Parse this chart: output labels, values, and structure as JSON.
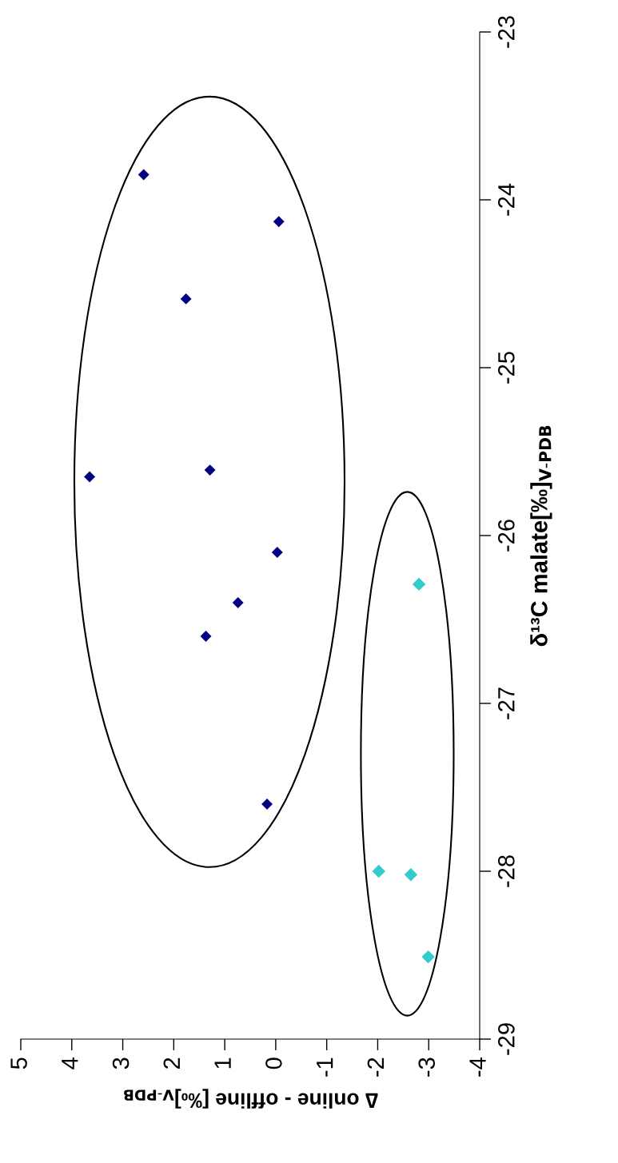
{
  "chart_data": {
    "type": "scatter",
    "ylabel": "δ¹³C malate[‰]$_{ V-PDB}$",
    "xlabel": "∆ online - offline [‰]$_{V-PDB}$",
    "ylim": [
      -29,
      -23
    ],
    "yticks": [
      -29,
      -28,
      -27,
      -26,
      -25,
      -24,
      -23
    ],
    "xlim": [
      5,
      -4
    ],
    "xticks": [
      -4,
      -3,
      -2,
      -1,
      0,
      1,
      2,
      3,
      4,
      5
    ],
    "marker": "diamond",
    "grid": false,
    "legend": false,
    "series": [
      {
        "color": "#000080",
        "values": [
          -23.85,
          -24.13,
          -24.59,
          -25.65,
          -25.61,
          -26.1,
          -26.4,
          -26.6,
          -27.6
        ],
        "x": [
          2.59,
          -0.06,
          1.76,
          3.65,
          1.29,
          -0.03,
          0.74,
          1.37,
          0.17
        ]
      },
      {
        "color": "#33cccc",
        "values": [
          -26.29,
          -28.0,
          -28.02,
          -28.51
        ],
        "x": [
          -2.81,
          -2.02,
          -2.65,
          -2.99
        ]
      }
    ]
  }
}
